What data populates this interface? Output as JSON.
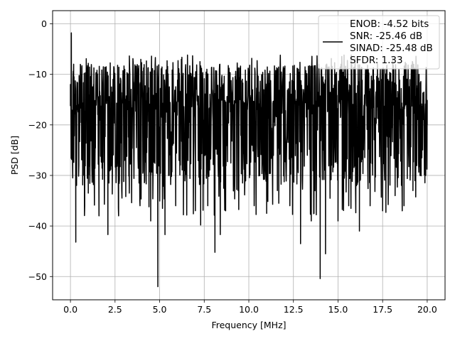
{
  "chart_data": {
    "type": "line",
    "title": "",
    "xlabel": "Frequency [MHz]",
    "ylabel": "PSD [dB]",
    "xlim": [
      -1.0,
      21.0
    ],
    "ylim": [
      -54.6,
      2.6
    ],
    "xticks": [
      0.0,
      2.5,
      5.0,
      7.5,
      10.0,
      12.5,
      15.0,
      17.5,
      20.0
    ],
    "xtick_labels": [
      "0.0",
      "2.5",
      "5.0",
      "7.5",
      "10.0",
      "12.5",
      "15.0",
      "17.5",
      "20.0"
    ],
    "yticks": [
      0,
      -10,
      -20,
      -30,
      -40,
      -50
    ],
    "ytick_labels": [
      "0",
      "−10",
      "−20",
      "−30",
      "−40",
      "−50"
    ],
    "grid": true,
    "legend_position": "top-right",
    "legend_lines": [
      "ENOB: -4.52 bits",
      "SNR: -25.46 dB",
      "SINAD: -25.48 dB",
      "SFDR: 1.33"
    ],
    "series": [
      {
        "color": "#000000",
        "note_on_shape": "dense noise band roughly between -25 and -8 dB with deep notches",
        "band_low": -25,
        "band_high": -8,
        "x": [
          0.0,
          0.05,
          0.1,
          0.18,
          0.3,
          0.45,
          0.6,
          0.8,
          1.0,
          1.3,
          1.6,
          2.1,
          2.7,
          3.3,
          3.9,
          4.5,
          4.9,
          5.3,
          5.9,
          6.7,
          7.3,
          7.7,
          8.1,
          8.4,
          8.7,
          9.4,
          10.3,
          11.0,
          11.6,
          12.3,
          12.9,
          13.5,
          14.0,
          14.3,
          15.0,
          15.6,
          16.2,
          16.8,
          17.5,
          18.2,
          18.7,
          19.2,
          19.6,
          20.0
        ],
        "y": [
          -12,
          -1.8,
          -25,
          -8,
          -43.2,
          -16,
          -10,
          -36,
          -33.5,
          -12,
          -38,
          -41.7,
          -38,
          -33.5,
          -36,
          -39,
          -52,
          -41.7,
          -36,
          -30.6,
          -39.8,
          -36,
          -45.2,
          -41.7,
          -37,
          -33,
          -36,
          -37.5,
          -33,
          -36,
          -43.5,
          -39,
          -50.4,
          -45.5,
          -39,
          -36,
          -41,
          -36,
          -37,
          -34,
          -36,
          -33,
          -30,
          -20
        ]
      }
    ],
    "band_sample_count": 1400
  }
}
